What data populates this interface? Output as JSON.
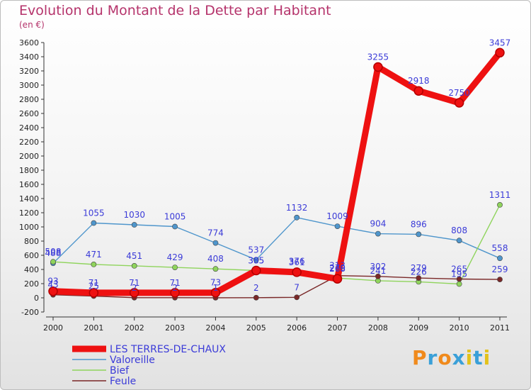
{
  "header": {
    "title": "Evolution du Montant de la Dette par Habitant",
    "subtitle": "(en €)"
  },
  "brand": {
    "letters": [
      "P",
      "r",
      "o",
      "x",
      "i",
      "t",
      "i"
    ],
    "colors": [
      "#f08a1c",
      "#3aa0d8",
      "#f08a1c",
      "#3aa0d8",
      "#e3c21b",
      "#3aa0d8",
      "#e3c21b"
    ]
  },
  "chart_data": {
    "type": "line",
    "categories": [
      "2000",
      "2001",
      "2002",
      "2003",
      "2004",
      "2005",
      "2006",
      "2007",
      "2008",
      "2009",
      "2010",
      "2011"
    ],
    "title": "Evolution du Montant de la Dette par Habitant",
    "subtitle": "(en €)",
    "ylim": [
      -200,
      3600
    ],
    "yticks": [
      "-200",
      "0",
      "200",
      "400",
      "600",
      "800",
      "1000",
      "1200",
      "1400",
      "1600",
      "1800",
      "2000",
      "2200",
      "2400",
      "2600",
      "2800",
      "3000",
      "3200",
      "3400",
      "3600"
    ],
    "grid": false,
    "legend_position": "bottom-left",
    "series": [
      {
        "name": "LES TERRES-DE-CHAUX",
        "color": "#ee1111",
        "label_color": "#3b3bd8",
        "values": [
          93,
          71,
          71,
          71,
          73,
          385,
          361,
          268,
          3255,
          2918,
          2750,
          3457
        ],
        "labels": [
          "93",
          "71",
          "71",
          "71",
          "73",
          "385",
          "361",
          "268",
          "3255",
          "2918",
          "2750",
          "3457"
        ]
      },
      {
        "name": "Valoreille",
        "color": "#4f96cc",
        "label_color": "#3b3bd8",
        "values": [
          488,
          1055,
          1030,
          1005,
          774,
          537,
          1132,
          1009,
          904,
          896,
          808,
          558
        ],
        "labels": [
          "488",
          "1055",
          "1030",
          "1005",
          "774",
          "537",
          "1132",
          "1009",
          "904",
          "896",
          "808",
          "558"
        ]
      },
      {
        "name": "Bief",
        "color": "#8fd45c",
        "label_color": "#3b3bd8",
        "values": [
          508,
          471,
          451,
          429,
          408,
          385,
          376,
          279,
          241,
          226,
          195,
          1311
        ],
        "labels": [
          "508",
          "471",
          "451",
          "429",
          "408",
          "385",
          "376",
          "279",
          "241",
          "226",
          "195",
          "1311"
        ]
      },
      {
        "name": "Feule",
        "color": "#7a2828",
        "label_color": "#3b3bd8",
        "values": [
          43,
          25,
          2,
          2,
          1,
          2,
          7,
          313,
          302,
          279,
          265,
          259
        ],
        "labels": [
          "43",
          "25",
          "2",
          "2",
          "1",
          "2",
          "7",
          "313",
          "302",
          "279",
          "265",
          "259"
        ]
      }
    ]
  }
}
